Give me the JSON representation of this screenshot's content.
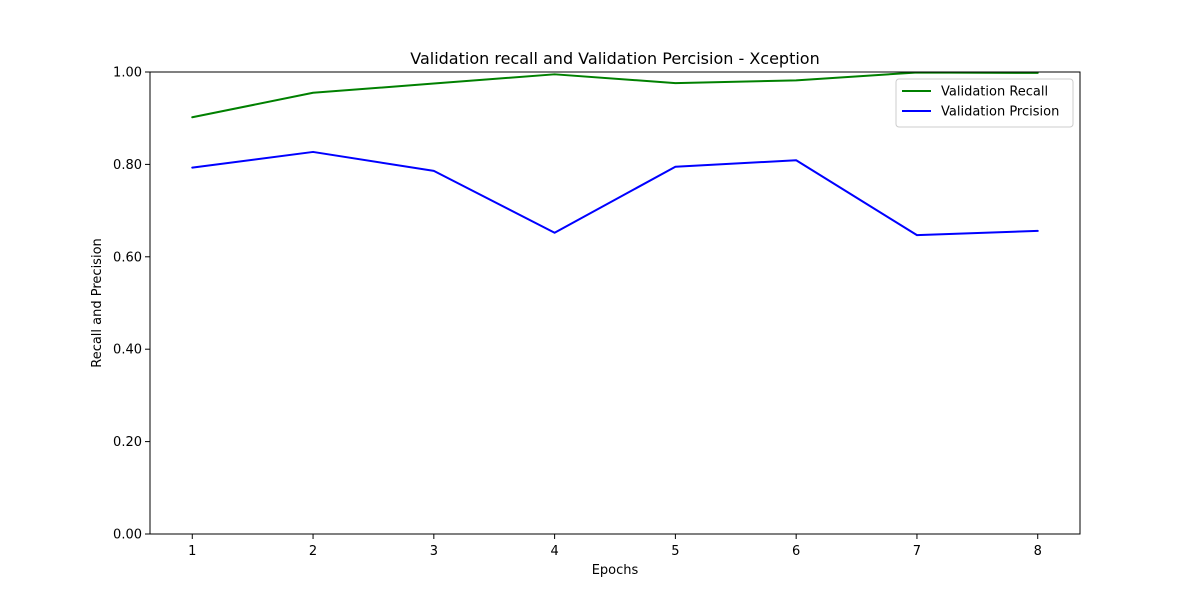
{
  "chart_data": {
    "type": "line",
    "title": "Validation recall and Validation Percision - Xception",
    "xlabel": "Epochs",
    "ylabel": "Recall and Precision",
    "x": [
      1,
      2,
      3,
      4,
      5,
      6,
      7,
      8
    ],
    "x_ticks": [
      "1",
      "2",
      "3",
      "4",
      "5",
      "6",
      "7",
      "8"
    ],
    "xlim": [
      0.65,
      8.35
    ],
    "ylim": [
      0.0,
      1.0
    ],
    "y_ticks": [
      "0.00",
      "0.20",
      "0.40",
      "0.60",
      "0.80",
      "1.00"
    ],
    "grid": false,
    "legend_position": "top-right",
    "series": [
      {
        "name": "Validation Recall",
        "color": "#008000",
        "values": [
          0.902,
          0.955,
          0.975,
          0.995,
          0.976,
          0.982,
          0.999,
          0.998
        ]
      },
      {
        "name": "Validation Prcision",
        "color": "#0000ff",
        "values": [
          0.793,
          0.827,
          0.786,
          0.652,
          0.795,
          0.809,
          0.647,
          0.656
        ]
      }
    ]
  }
}
